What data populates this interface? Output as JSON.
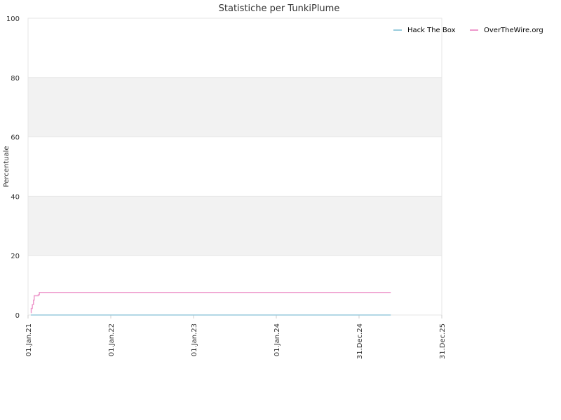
{
  "chart_data": {
    "type": "line",
    "title": "Statistiche per TunkiPlume",
    "xlabel": "",
    "ylabel": "Percentuale",
    "ylim": [
      0,
      100
    ],
    "yticks": [
      "0",
      "20",
      "40",
      "60",
      "80",
      "100"
    ],
    "xlim": [
      "2021-01-01",
      "2025-12-31"
    ],
    "xticks": [
      {
        "date": "2021-01-01",
        "label": "01.Jan.21"
      },
      {
        "date": "2022-01-01",
        "label": "01.Jan.22"
      },
      {
        "date": "2023-01-01",
        "label": "01.Jan.23"
      },
      {
        "date": "2024-01-01",
        "label": "01.Jan.24"
      },
      {
        "date": "2024-12-31",
        "label": "31.Dec.24"
      },
      {
        "date": "2025-12-31",
        "label": "31.Dec.25"
      }
    ],
    "alternating_bands": true,
    "legend_position": "top-right",
    "series": [
      {
        "name": "Hack The Box",
        "color": "#99ccdd",
        "points": [
          [
            "2021-01-13",
            0
          ],
          [
            "2025-05-20",
            0
          ]
        ]
      },
      {
        "name": "OverTheWire.org",
        "color": "#ee99cc",
        "points": [
          [
            "2021-01-13",
            0.8
          ],
          [
            "2021-01-15",
            2.2
          ],
          [
            "2021-01-20",
            3.5
          ],
          [
            "2021-01-25",
            5.0
          ],
          [
            "2021-01-28",
            6.5
          ],
          [
            "2021-02-15",
            6.8
          ],
          [
            "2021-02-20",
            7.6
          ],
          [
            "2025-05-20",
            7.6
          ]
        ]
      }
    ]
  }
}
